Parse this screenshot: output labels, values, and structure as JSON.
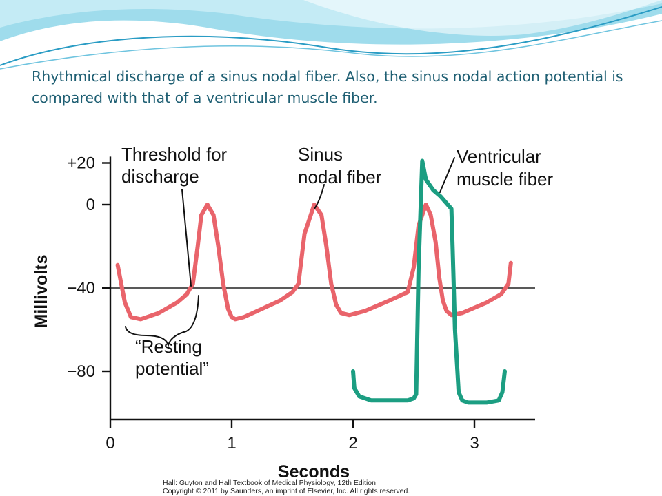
{
  "slide": {
    "title": "Rhythmical discharge of a sinus nodal fiber. Also, the sinus nodal action potential is compared with that of a ventricular muscle fiber."
  },
  "colors": {
    "title_text": "#1f5f73",
    "sinus_series": "#e9646b",
    "ventricular_series": "#1c9e82",
    "header_wave_light": "#c9eef7",
    "header_wave_mid": "#6fc4df",
    "header_wave_dark": "#2a9cc4"
  },
  "chart_data": {
    "type": "line",
    "title": "",
    "xlabel": "Seconds",
    "ylabel": "Millivolts",
    "xlim": [
      0,
      3.5
    ],
    "ylim": [
      -100,
      25
    ],
    "x_ticks": [
      {
        "value": 0,
        "label": "0"
      },
      {
        "value": 1,
        "label": "1"
      },
      {
        "value": 2,
        "label": "2"
      },
      {
        "value": 3,
        "label": "3"
      }
    ],
    "y_ticks": [
      {
        "value": 20,
        "label": "+20"
      },
      {
        "value": 0,
        "label": "0"
      },
      {
        "value": -40,
        "label": "−40"
      },
      {
        "value": -80,
        "label": "−80"
      }
    ],
    "reference_line": {
      "y": -40
    },
    "series": [
      {
        "name": "Sinus nodal fiber",
        "x": [
          0.06,
          0.09,
          0.12,
          0.17,
          0.25,
          0.4,
          0.55,
          0.63,
          0.68,
          0.72,
          0.75,
          0.8,
          0.85,
          0.89,
          0.93,
          0.97,
          1.0,
          1.03,
          1.1,
          1.25,
          1.4,
          1.5,
          1.55,
          1.6,
          1.68,
          1.74,
          1.78,
          1.82,
          1.86,
          1.9,
          1.97,
          2.1,
          2.3,
          2.45,
          2.5,
          2.54,
          2.6,
          2.64,
          2.68,
          2.71,
          2.74,
          2.77,
          2.81,
          2.9,
          3.1,
          3.22,
          3.28,
          3.3
        ],
        "y": [
          -29,
          -38,
          -47,
          -54,
          -55,
          -52,
          -47,
          -43,
          -38,
          -20,
          -5,
          0,
          -5,
          -20,
          -38,
          -50,
          -54,
          -55,
          -54,
          -50,
          -46,
          -42,
          -38,
          -14,
          0,
          -5,
          -20,
          -38,
          -48,
          -52,
          -53,
          -51,
          -46,
          -42,
          -30,
          -10,
          0,
          -5,
          -18,
          -35,
          -46,
          -51,
          -53,
          -52,
          -47,
          -43,
          -38,
          -28
        ]
      },
      {
        "name": "Ventricular muscle fiber",
        "x": [
          2.0,
          2.01,
          2.05,
          2.15,
          2.3,
          2.45,
          2.5,
          2.52,
          2.54,
          2.57,
          2.6,
          2.66,
          2.72,
          2.78,
          2.81,
          2.82,
          2.84,
          2.87,
          2.9,
          2.95,
          3.1,
          3.2,
          3.23,
          3.25
        ],
        "y": [
          -80,
          -88,
          -92,
          -94,
          -94,
          -94,
          -93,
          -91,
          -30,
          21,
          12,
          7,
          4,
          0,
          -2,
          -20,
          -60,
          -90,
          -94,
          -95,
          -95,
          -94,
          -90,
          -80
        ]
      }
    ],
    "annotations": [
      {
        "lines": [
          "Threshold for",
          "discharge"
        ]
      },
      {
        "lines": [
          "Sinus",
          "nodal fiber"
        ]
      },
      {
        "lines": [
          "Ventricular",
          "muscle fiber"
        ]
      },
      {
        "lines": [
          "“Resting",
          "potential”"
        ]
      }
    ],
    "credit": [
      "Hall: Guyton and Hall Textbook of Medical Physiology, 12th Edition",
      "Copyright © 2011 by Saunders, an imprint of Elsevier, Inc. All rights reserved."
    ]
  }
}
